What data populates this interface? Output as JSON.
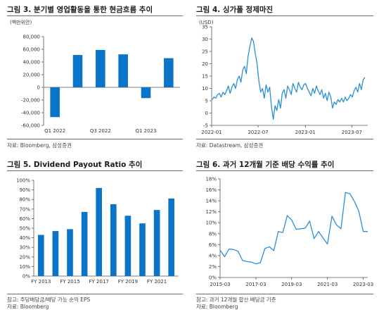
{
  "panels": {
    "p1": {
      "title": "그림 3. 분기별 영업활동을 통한 현금흐름 추이",
      "source": "자료: Bloomberg, 삼성증권"
    },
    "p2": {
      "title": "그림 4. 싱가폴 정제마진",
      "source": "자료: Datastream, 삼성증권"
    },
    "p3": {
      "title": "그림 5. Dividend Payout Ratio 추이",
      "note": "참고: 주당배당금/배당 가능 순익 EPS",
      "source": "자료: Bloomberg"
    },
    "p4": {
      "title": "그림 6. 과거 12개월 기준 배당 수익률 추이",
      "note": "참고: 과거 12개월 합산 배당금 기준",
      "source": "자료: Bloomberg"
    }
  },
  "colors": {
    "bar": "#0a74c9",
    "line": "#2b8fd6",
    "axis": "#555555",
    "title_rule": "#6b6b6b"
  },
  "chart_data": [
    {
      "type": "bar",
      "unit_label": "(백만위안)",
      "categories": [
        "Q1 2022",
        "Q2 2022",
        "Q3 2022",
        "Q4 2022",
        "Q1 2023",
        "Q2 2023"
      ],
      "x_tick_labels": [
        {
          "category": "Q1 2022",
          "text": "Q1 2022"
        },
        {
          "category": "Q3 2022",
          "text": "Q3 2022"
        },
        {
          "category": "Q1 2023",
          "text": "Q1 2023"
        }
      ],
      "values": [
        -47000,
        51000,
        59000,
        52000,
        -17000,
        46000
      ],
      "y_ticks": [
        80000,
        60000,
        40000,
        20000,
        0,
        -20000,
        -40000,
        -60000
      ],
      "y_tick_labels": [
        "80,000",
        "60,000",
        "40,000",
        "20,000",
        "0",
        "-20,000",
        "-40,000",
        "-60,000"
      ],
      "ylim": [
        -60000,
        80000
      ],
      "grid": false
    },
    {
      "type": "line",
      "unit_label": "(USD)",
      "x_tick_labels": [
        "2022-01",
        "2022-07",
        "2023-01",
        "2023-07"
      ],
      "x_ticks": [
        "2022-01",
        "2022-07",
        "2023-01",
        "2023-07"
      ],
      "xlim": [
        "2022-01",
        "2023-09"
      ],
      "y_ticks": [
        35,
        30,
        25,
        20,
        15,
        10,
        5,
        0,
        -5
      ],
      "y_tick_labels": [
        "35",
        "30",
        "25",
        "20",
        "15",
        "10",
        "5",
        "0",
        "-5"
      ],
      "ylim": [
        -5,
        35
      ],
      "grid": false,
      "x": [
        "2022-01-03",
        "2022-01-10",
        "2022-01-17",
        "2022-01-24",
        "2022-01-31",
        "2022-02-07",
        "2022-02-14",
        "2022-02-21",
        "2022-02-28",
        "2022-03-07",
        "2022-03-14",
        "2022-03-21",
        "2022-03-28",
        "2022-04-04",
        "2022-04-11",
        "2022-04-18",
        "2022-04-25",
        "2022-05-02",
        "2022-05-09",
        "2022-05-16",
        "2022-05-23",
        "2022-05-30",
        "2022-06-06",
        "2022-06-13",
        "2022-06-20",
        "2022-06-27",
        "2022-07-04",
        "2022-07-11",
        "2022-07-18",
        "2022-07-25",
        "2022-08-01",
        "2022-08-08",
        "2022-08-15",
        "2022-08-22",
        "2022-08-29",
        "2022-09-05",
        "2022-09-12",
        "2022-09-19",
        "2022-09-26",
        "2022-10-03",
        "2022-10-10",
        "2022-10-17",
        "2022-10-24",
        "2022-10-31",
        "2022-11-07",
        "2022-11-14",
        "2022-11-21",
        "2022-11-28",
        "2022-12-05",
        "2022-12-12",
        "2022-12-19",
        "2022-12-26",
        "2023-01-02",
        "2023-01-09",
        "2023-01-16",
        "2023-01-23",
        "2023-01-30",
        "2023-02-06",
        "2023-02-13",
        "2023-02-20",
        "2023-02-27",
        "2023-03-06",
        "2023-03-13",
        "2023-03-20",
        "2023-03-27",
        "2023-04-03",
        "2023-04-10",
        "2023-04-17",
        "2023-04-24",
        "2023-05-01",
        "2023-05-08",
        "2023-05-15",
        "2023-05-22",
        "2023-05-29",
        "2023-06-05",
        "2023-06-12",
        "2023-06-19",
        "2023-06-26",
        "2023-07-03",
        "2023-07-10",
        "2023-07-17",
        "2023-07-24",
        "2023-07-31",
        "2023-08-07",
        "2023-08-14",
        "2023-08-21"
      ],
      "values": [
        5.5,
        6.5,
        6.0,
        7.5,
        8.0,
        6.5,
        8.5,
        7.5,
        9.0,
        11.0,
        8.0,
        10.5,
        12.0,
        10.0,
        13.5,
        15.0,
        12.5,
        17.5,
        19.0,
        16.0,
        23.0,
        27.0,
        30.5,
        29.0,
        24.0,
        20.0,
        13.0,
        8.5,
        10.0,
        6.0,
        11.5,
        8.5,
        10.5,
        2.5,
        -2.5,
        3.0,
        1.0,
        5.5,
        2.0,
        8.0,
        9.5,
        6.0,
        11.0,
        9.5,
        7.5,
        12.0,
        10.0,
        8.5,
        12.5,
        10.5,
        9.5,
        11.5,
        12.0,
        10.0,
        8.5,
        7.0,
        10.0,
        8.0,
        11.0,
        9.0,
        7.5,
        9.5,
        6.0,
        8.0,
        5.0,
        8.5,
        6.5,
        2.0,
        4.5,
        3.5,
        5.5,
        4.5,
        6.0,
        4.5,
        6.5,
        5.0,
        6.0,
        7.5,
        6.5,
        9.0,
        10.5,
        8.5,
        12.0,
        9.5,
        13.5,
        14.5
      ]
    },
    {
      "type": "bar",
      "categories": [
        "FY 2013",
        "FY 2014",
        "FY 2015",
        "FY 2016",
        "FY 2017",
        "FY 2018",
        "FY 2019",
        "FY 2020",
        "FY 2021",
        "FY 2022"
      ],
      "x_tick_labels": [
        {
          "category": "FY 2013",
          "text": "FY 2013"
        },
        {
          "category": "FY 2015",
          "text": "FY 2015"
        },
        {
          "category": "FY 2017",
          "text": "FY 2017"
        },
        {
          "category": "FY 2019",
          "text": "FY 2019"
        },
        {
          "category": "FY 2021",
          "text": "FY 2021"
        }
      ],
      "values": [
        43,
        47,
        49,
        67,
        92,
        75,
        63,
        55,
        69,
        81
      ],
      "y_ticks": [
        100,
        90,
        80,
        70,
        60,
        50,
        40,
        30,
        20,
        10,
        0
      ],
      "y_tick_labels": [
        "100%",
        "90%",
        "80%",
        "70%",
        "60%",
        "50%",
        "40%",
        "30%",
        "20%",
        "10%",
        "0%"
      ],
      "ylim": [
        0,
        100
      ],
      "grid": false
    },
    {
      "type": "line",
      "x_tick_labels": [
        "2015-03",
        "2017-03",
        "2019-03",
        "2021-03",
        "2023-03"
      ],
      "x_ticks": [
        "2015-03",
        "2017-03",
        "2019-03",
        "2021-03",
        "2023-03"
      ],
      "xlim": [
        "2015-03",
        "2023-06"
      ],
      "y_ticks": [
        18,
        16,
        14,
        12,
        10,
        8,
        6,
        4,
        2,
        0
      ],
      "y_tick_labels": [
        "18%",
        "16%",
        "14%",
        "12%",
        "10%",
        "8%",
        "6%",
        "4%",
        "2%",
        "0%"
      ],
      "ylim": [
        0,
        18
      ],
      "grid": false,
      "x": [
        "2015-03",
        "2015-06",
        "2015-09",
        "2015-12",
        "2016-03",
        "2016-06",
        "2016-09",
        "2016-12",
        "2017-03",
        "2017-06",
        "2017-09",
        "2017-12",
        "2018-03",
        "2018-06",
        "2018-09",
        "2018-12",
        "2019-03",
        "2019-06",
        "2019-09",
        "2019-12",
        "2020-03",
        "2020-06",
        "2020-09",
        "2020-12",
        "2021-03",
        "2021-06",
        "2021-09",
        "2021-12",
        "2022-03",
        "2022-06",
        "2022-09",
        "2022-12",
        "2023-03",
        "2023-06"
      ],
      "values": [
        5.0,
        3.8,
        5.2,
        5.1,
        4.8,
        3.1,
        2.9,
        2.8,
        2.5,
        2.7,
        5.3,
        5.6,
        4.9,
        8.4,
        8.2,
        11.3,
        10.5,
        8.8,
        8.9,
        9.0,
        10.3,
        7.1,
        8.4,
        7.2,
        6.1,
        11.2,
        9.6,
        8.9,
        15.5,
        15.3,
        13.9,
        12.1,
        8.4,
        8.4
      ]
    }
  ]
}
